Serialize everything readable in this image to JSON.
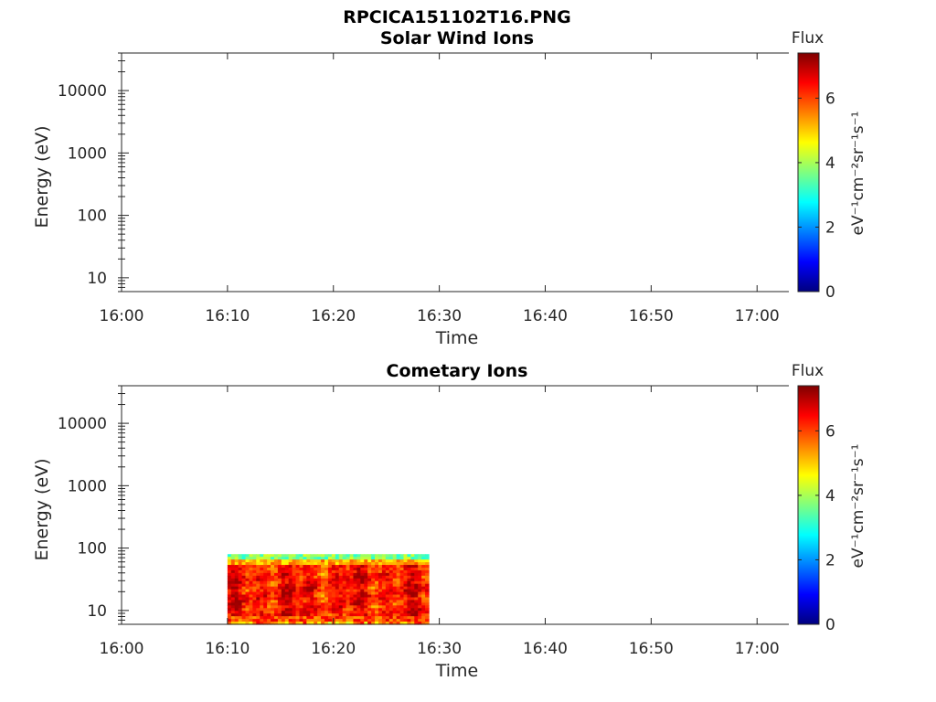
{
  "figure": {
    "title": "RPCICA151102T16.PNG"
  },
  "colors": {
    "axis": "#262626",
    "jet": [
      "#00007f",
      "#0000ff",
      "#007fff",
      "#00ffff",
      "#7fff7f",
      "#ffff00",
      "#ff7f00",
      "#ff0000",
      "#7f0000"
    ]
  },
  "chart_data": [
    {
      "type": "heatmap",
      "title": "Solar Wind Ions",
      "xlabel": "Time",
      "ylabel": "Energy (eV)",
      "xticks": [
        "16:00",
        "16:10",
        "16:20",
        "16:30",
        "16:40",
        "16:50",
        "17:00"
      ],
      "xlim": [
        "16:00",
        "17:03"
      ],
      "yscale": "log",
      "yticks": [
        10,
        100,
        1000,
        10000
      ],
      "ylim": [
        6,
        40000
      ],
      "colorbar": {
        "label": "Flux",
        "units": "eV⁻¹cm⁻²sr⁻¹s⁻¹",
        "ticks": [
          0,
          2,
          4,
          6
        ],
        "range": [
          0,
          7.4
        ],
        "colormap": "jet"
      },
      "data_region": null
    },
    {
      "type": "heatmap",
      "title": "Cometary Ions",
      "xlabel": "Time",
      "ylabel": "Energy (eV)",
      "xticks": [
        "16:00",
        "16:10",
        "16:20",
        "16:30",
        "16:40",
        "16:50",
        "17:00"
      ],
      "xlim": [
        "16:00",
        "17:03"
      ],
      "yscale": "log",
      "yticks": [
        10,
        100,
        1000,
        10000
      ],
      "ylim": [
        6,
        40000
      ],
      "colorbar": {
        "label": "Flux",
        "units": "eV⁻¹cm⁻²sr⁻¹s⁻¹",
        "ticks": [
          0,
          2,
          4,
          6
        ],
        "range": [
          0,
          7.4
        ],
        "colormap": "jet"
      },
      "data_region": {
        "time_start": "16:10",
        "time_end": "16:29",
        "energy_min": 6,
        "energy_max": 80,
        "typical_flux": 6.5,
        "peak_flux": 7.2,
        "edge_flux": 3
      }
    }
  ]
}
